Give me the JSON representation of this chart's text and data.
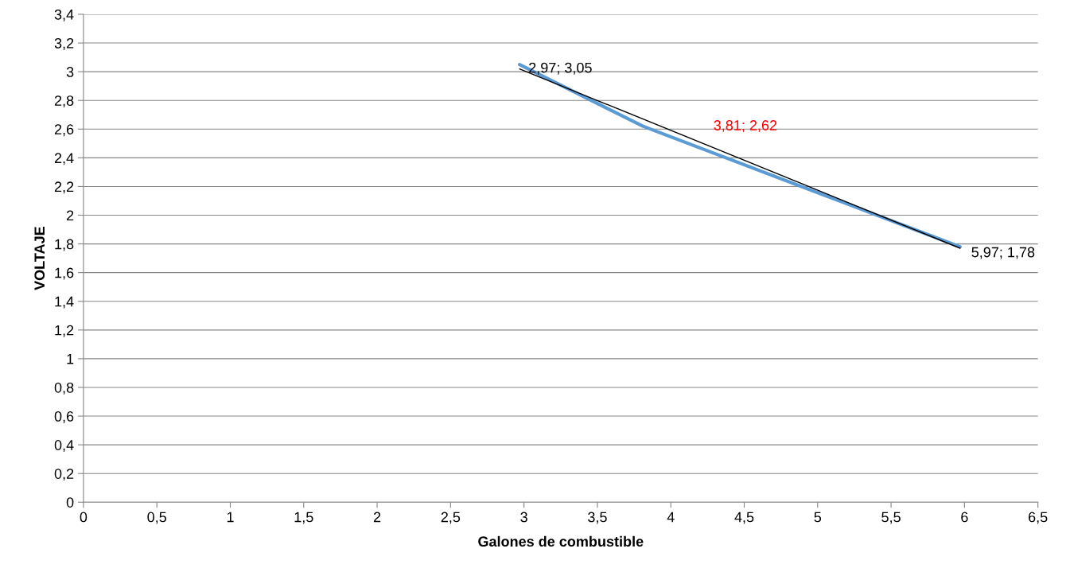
{
  "chart_data": {
    "type": "line",
    "xlabel": "Galones de combustible",
    "ylabel": "VOLTAJE",
    "series": [
      {
        "color": "#5b9bd5",
        "x": [
          2.97,
          3.81,
          5.97
        ],
        "values": [
          3.05,
          2.62,
          1.78
        ]
      },
      {
        "color": "#000000",
        "x": [
          2.97,
          5.97
        ],
        "values": [
          3.02,
          1.77
        ]
      }
    ],
    "annotations": [
      {
        "text": "2,97; 3,05",
        "x": 2.97,
        "y": 3.05
      },
      "3,81; 2,62",
      {
        "text": "5,97; 1,78",
        "x": 5.97,
        "y": 1.78
      }
    ],
    "xlim": [
      0,
      6.5
    ],
    "ylim": [
      0,
      3.4
    ],
    "xticks": [
      0,
      {
        "value": 0.5,
        "label": "0,5"
      },
      1,
      {
        "value": 1.5,
        "label": "1,5"
      },
      2,
      {
        "value": 2.5,
        "label": "2,5"
      },
      3,
      {
        "value": 3.5,
        "label": "3,5"
      },
      4,
      {
        "value": 4.5,
        "label": "4,5"
      },
      5,
      {
        "value": 5.5,
        "label": "5,5"
      },
      6,
      {
        "value": 6.5,
        "label": "6,5"
      }
    ],
    "yticks": [
      0,
      {
        "value": 0.2,
        "label": "0,2"
      },
      {
        "value": 0.4,
        "label": "0,4"
      },
      {
        "value": 0.6,
        "label": "0,6"
      },
      {
        "value": 0.8,
        "label": "0,8"
      },
      1,
      {
        "value": 1.2,
        "label": "1,2"
      },
      {
        "value": 1.4,
        "label": "1,4"
      },
      {
        "value": 1.6,
        "label": "1,6"
      },
      {
        "value": 1.8,
        "label": "1,8"
      },
      2,
      {
        "value": 2.2,
        "label": "2,2"
      },
      {
        "value": 2.4,
        "label": "2,4"
      },
      {
        "value": 2.6,
        "label": "2,6"
      },
      {
        "value": 2.8,
        "label": "2,8"
      },
      3,
      {
        "value": 3.2,
        "label": "3,2"
      },
      {
        "value": 3.4,
        "label": "3,4"
      }
    ],
    "grid": "y",
    "legend": false,
    "marker": "none"
  }
}
